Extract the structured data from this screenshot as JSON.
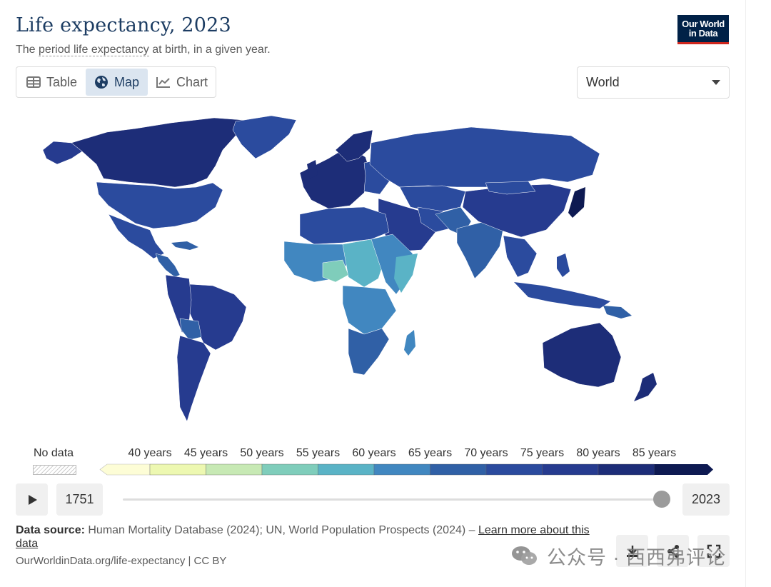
{
  "header": {
    "title": "Life expectancy, 2023",
    "subtitle_pre": "The ",
    "subtitle_link": "period life expectancy",
    "subtitle_post": " at birth, in a given year.",
    "logo_line1": "Our World",
    "logo_line2": "in Data"
  },
  "tabs": [
    {
      "label": "Table",
      "icon": "table-icon",
      "active": false
    },
    {
      "label": "Map",
      "icon": "globe-icon",
      "active": true
    },
    {
      "label": "Chart",
      "icon": "line-chart-icon",
      "active": false
    }
  ],
  "region": {
    "selected": "World"
  },
  "legend": {
    "no_data_label": "No data",
    "ticks": [
      "40 years",
      "45 years",
      "50 years",
      "55 years",
      "60 years",
      "65 years",
      "70 years",
      "75 years",
      "80 years",
      "85 years"
    ],
    "colors": [
      "#fdfdd6",
      "#edf8b1",
      "#c7e9b4",
      "#7fcdbb",
      "#5ab3c6",
      "#4187c0",
      "#3060a6",
      "#2b4b9e",
      "#263b8f",
      "#1d2d78",
      "#0e1a52"
    ]
  },
  "timeline": {
    "start_year": "1751",
    "end_year": "2023",
    "position": 1.0
  },
  "footer": {
    "source_label": "Data source:",
    "source_text": " Human Mortality Database (2024); UN, World Population Prospects (2024) – ",
    "learn_more": "Learn more about this data",
    "url": "OurWorldinData.org/life-expectancy | CC BY"
  },
  "actions": [
    {
      "name": "download-icon"
    },
    {
      "name": "share-icon"
    },
    {
      "name": "fullscreen-icon"
    }
  ],
  "watermark": {
    "text": "公众号 · 西西弗评论",
    "icon": "wechat-icon"
  },
  "colors": {
    "title": "#1d3d63",
    "logo_bg": "#002147",
    "logo_accent": "#ce261e",
    "tab_active": "#dbe5f0"
  }
}
